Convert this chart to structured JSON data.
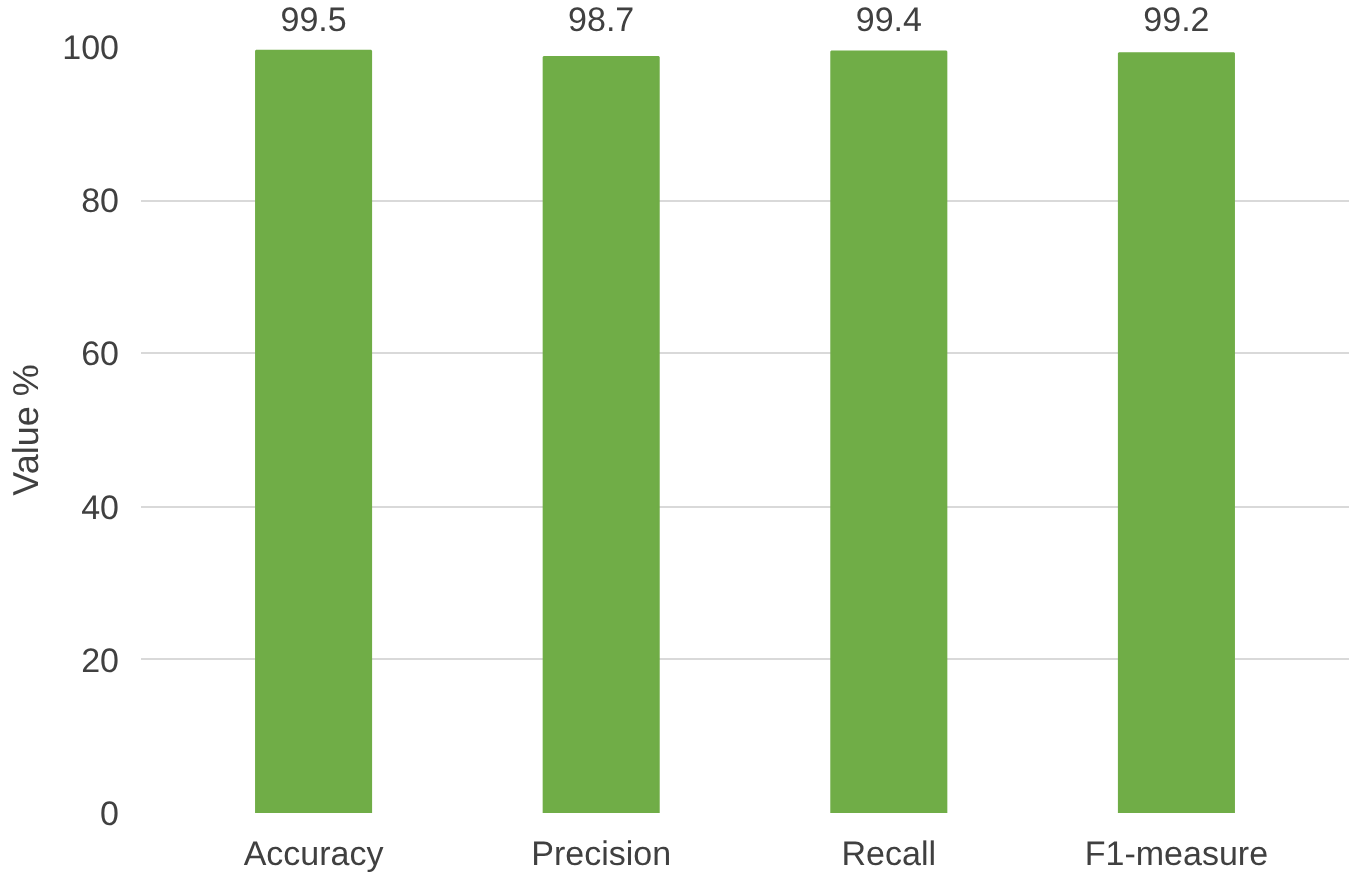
{
  "chart_data": {
    "type": "bar",
    "ylabel": "Value %",
    "categories": [
      "Accuracy",
      "Precision",
      "Recall",
      "F1-measure"
    ],
    "values": [
      99.5,
      98.7,
      99.4,
      99.2
    ],
    "color": "#70ad47",
    "ylim": [
      0,
      100
    ],
    "yticks": [
      0,
      20,
      40,
      60,
      80,
      100
    ],
    "grid": "y",
    "data_labels": true
  }
}
